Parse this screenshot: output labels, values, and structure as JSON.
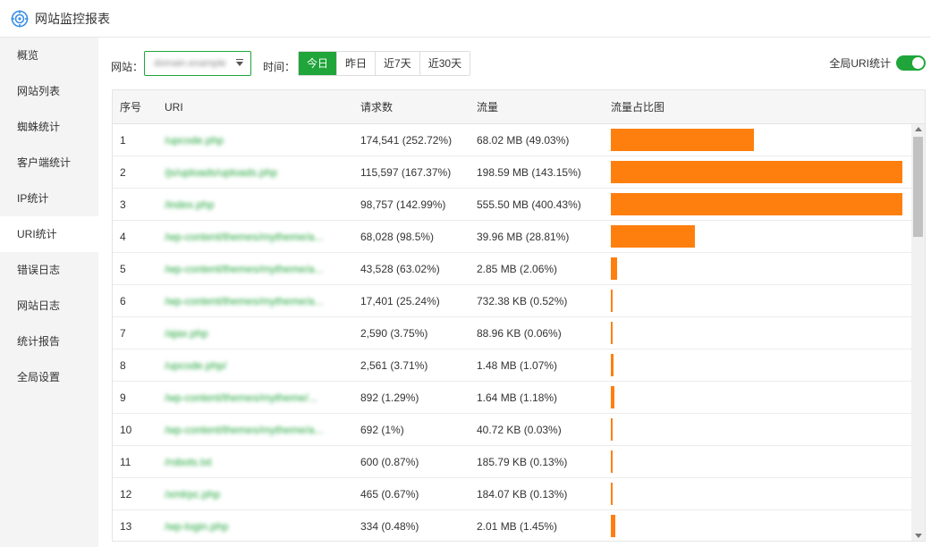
{
  "window": {
    "title": "网站监控报表",
    "logo_icon": "target-icon",
    "accent": "#20a53a"
  },
  "sidebar": {
    "items": [
      {
        "label": "概览",
        "active": false
      },
      {
        "label": "网站列表",
        "active": false
      },
      {
        "label": "蜘蛛统计",
        "active": false
      },
      {
        "label": "客户端统计",
        "active": false
      },
      {
        "label": "IP统计",
        "active": false
      },
      {
        "label": "URI统计",
        "active": true
      },
      {
        "label": "错误日志",
        "active": false
      },
      {
        "label": "网站日志",
        "active": false
      },
      {
        "label": "统计报告",
        "active": false
      },
      {
        "label": "全局设置",
        "active": false
      }
    ]
  },
  "toolbar": {
    "site_label": "网站：",
    "site_value": "domain.example",
    "time_label": "时间：",
    "time_options": [
      "今日",
      "昨日",
      "近7天",
      "近30天"
    ],
    "time_selected": "今日",
    "global_uri_label": "全局URI统计",
    "global_uri_enabled": true
  },
  "table": {
    "headers": [
      "序号",
      "URI",
      "请求数",
      "流量",
      "流量占比图"
    ],
    "bar_color": "#ff7f0e",
    "rows": [
      {
        "idx": "1",
        "uri": "/upcode.php",
        "requests": "174,541 (252.72%)",
        "traffic": "68.02 MB (49.03%)",
        "share": 49.03
      },
      {
        "idx": "2",
        "uri": "/js/uploads/uploads.php",
        "requests": "115,597 (167.37%)",
        "traffic": "198.59 MB (143.15%)",
        "share": 143.15
      },
      {
        "idx": "3",
        "uri": "/index.php",
        "requests": "98,757 (142.99%)",
        "traffic": "555.50 MB (400.43%)",
        "share": 400.43
      },
      {
        "idx": "4",
        "uri": "/wp-content/themes/mytheme/a...",
        "requests": "68,028 (98.5%)",
        "traffic": "39.96 MB (28.81%)",
        "share": 28.81
      },
      {
        "idx": "5",
        "uri": "/wp-content/themes/mytheme/a...",
        "requests": "43,528 (63.02%)",
        "traffic": "2.85 MB (2.06%)",
        "share": 2.06
      },
      {
        "idx": "6",
        "uri": "/wp-content/themes/mytheme/a...",
        "requests": "17,401 (25.24%)",
        "traffic": "732.38 KB (0.52%)",
        "share": 0.52
      },
      {
        "idx": "7",
        "uri": "/ajax.php",
        "requests": "2,590 (3.75%)",
        "traffic": "88.96 KB (0.06%)",
        "share": 0.06
      },
      {
        "idx": "8",
        "uri": "/upcode.php/",
        "requests": "2,561 (3.71%)",
        "traffic": "1.48 MB (1.07%)",
        "share": 1.07
      },
      {
        "idx": "9",
        "uri": "/wp-content/themes/mytheme/...",
        "requests": "892 (1.29%)",
        "traffic": "1.64 MB (1.18%)",
        "share": 1.18
      },
      {
        "idx": "10",
        "uri": "/wp-content/themes/mytheme/a...",
        "requests": "692 (1%)",
        "traffic": "40.72 KB (0.03%)",
        "share": 0.03
      },
      {
        "idx": "11",
        "uri": "/robots.txt",
        "requests": "600 (0.87%)",
        "traffic": "185.79 KB (0.13%)",
        "share": 0.13
      },
      {
        "idx": "12",
        "uri": "/xmlrpc.php",
        "requests": "465 (0.67%)",
        "traffic": "184.07 KB (0.13%)",
        "share": 0.13
      },
      {
        "idx": "13",
        "uri": "/wp-login.php",
        "requests": "334 (0.48%)",
        "traffic": "2.01 MB (1.45%)",
        "share": 1.45
      }
    ]
  }
}
